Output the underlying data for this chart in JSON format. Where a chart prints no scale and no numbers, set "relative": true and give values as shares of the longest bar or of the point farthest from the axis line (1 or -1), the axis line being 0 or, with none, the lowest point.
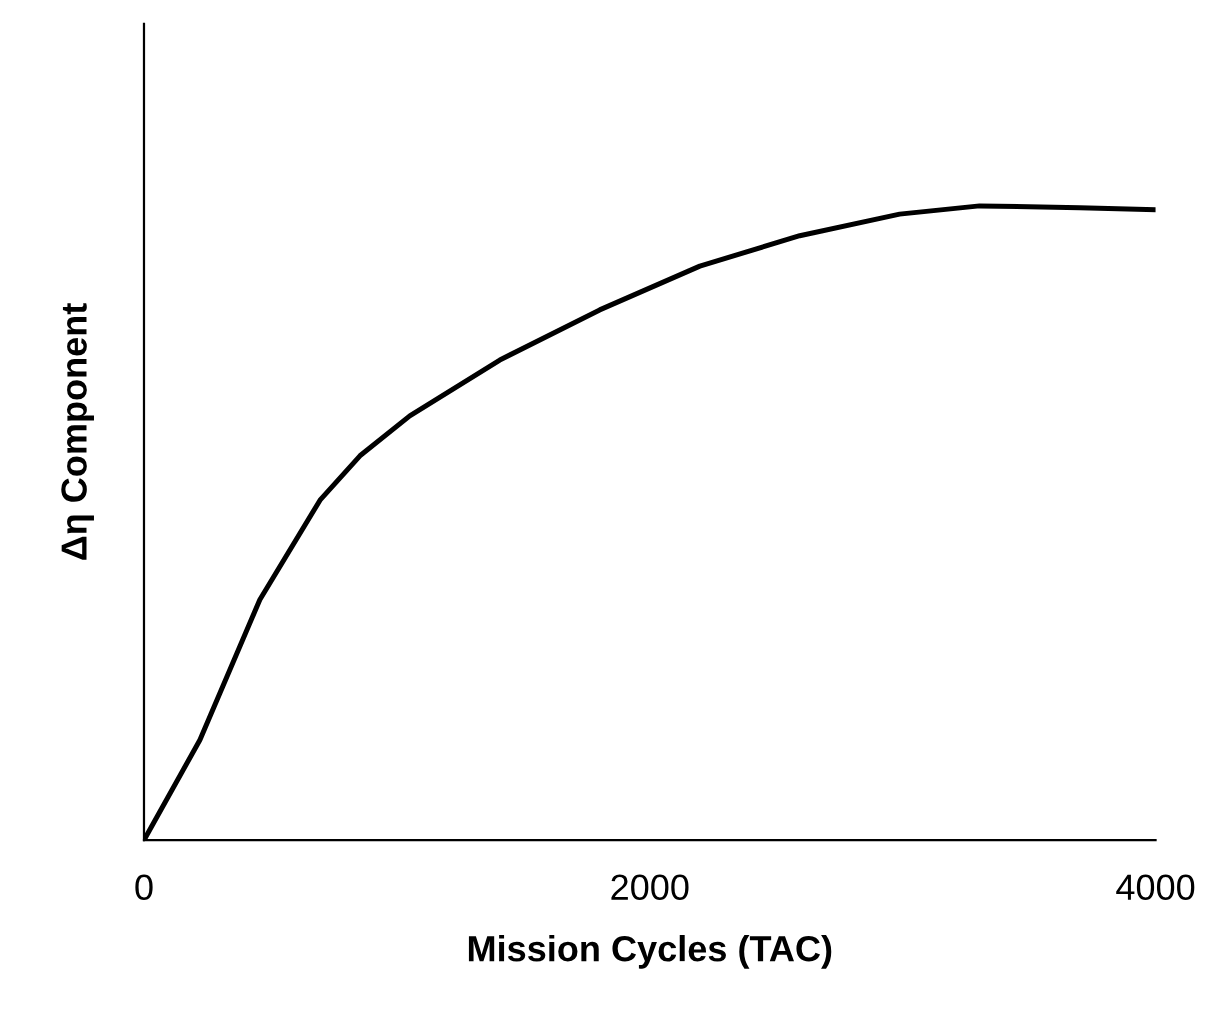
{
  "chart_data": {
    "type": "line",
    "xlabel": "Mission Cycles (TAC)",
    "ylabel": "Δη Component",
    "relative": true,
    "xlim": [
      0,
      4000
    ],
    "xticks": [
      0,
      2000,
      4000
    ],
    "grid": false,
    "legend": false,
    "marker": "none",
    "line_style": "solid",
    "series": [
      {
        "color": "#000000",
        "x": [
          0,
          221,
          458,
          696,
          854,
          1051,
          1407,
          1802,
          2198,
          2593,
          2988,
          3304,
          3700,
          4000
        ],
        "values": [
          0,
          0.158,
          0.379,
          0.536,
          0.606,
          0.669,
          0.757,
          0.836,
          0.905,
          0.953,
          0.987,
          1.0,
          0.997,
          0.994
        ]
      }
    ]
  }
}
